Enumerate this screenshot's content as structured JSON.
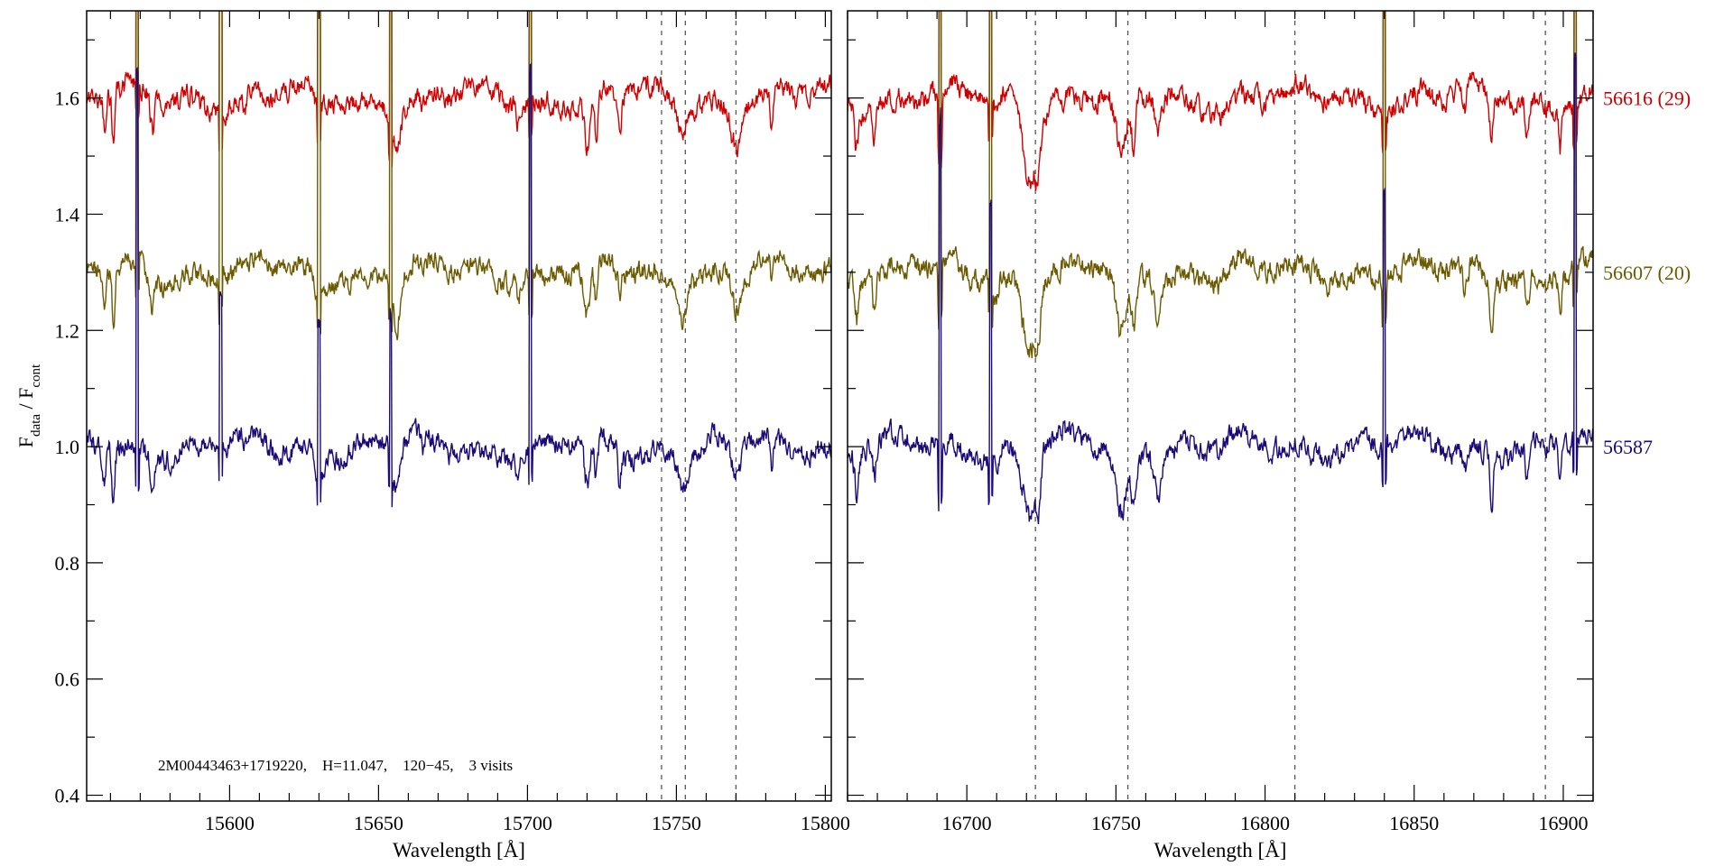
{
  "chart_data": {
    "type": "line",
    "ylabel_main": "F",
    "ylabel_sub1": "data",
    "ylabel_sep": " / F",
    "ylabel_sub2": "cont",
    "ylim": [
      0.39,
      1.75
    ],
    "yticks": [
      0.4,
      0.6,
      0.8,
      1.0,
      1.2,
      1.4,
      1.6
    ],
    "ytick_labels": [
      "0.4",
      "0.6",
      "0.8",
      "1.0",
      "1.2",
      "1.4",
      "1.6"
    ],
    "annotation": "2M00443463+1719220,    H=11.047,    120−45,    3 visits",
    "series": [
      {
        "name": "56616 (29)",
        "color": "#d10000",
        "offset": 0.6
      },
      {
        "name": "56607 (20)",
        "color": "#6b5a00",
        "offset": 0.3
      },
      {
        "name": "56587",
        "color": "#1c0a78",
        "offset": 0.0
      }
    ],
    "panels": [
      {
        "xlabel": "Wavelength [Å]",
        "xlim": [
          15552,
          15802
        ],
        "xticks": [
          15600,
          15650,
          15700,
          15750,
          15800
        ],
        "xtick_labels": [
          "15600",
          "15650",
          "15700",
          "15750",
          "15800"
        ],
        "dashed_lines": [
          15745,
          15753,
          15770
        ],
        "spikes": [
          15569,
          15597,
          15630,
          15654,
          15701
        ],
        "absorption": [
          [
            15558,
            0.05,
            0.6
          ],
          [
            15561,
            0.1,
            0.5
          ],
          [
            15574,
            0.07,
            0.6
          ],
          [
            15605,
            0.03,
            0.5
          ],
          [
            15630,
            0.04,
            1.5
          ],
          [
            15656,
            0.09,
            1.2
          ],
          [
            15665,
            0.03,
            0.8
          ],
          [
            15697,
            0.04,
            0.6
          ],
          [
            15720,
            0.1,
            1.0
          ],
          [
            15723,
            0.08,
            0.6
          ],
          [
            15731,
            0.07,
            0.5
          ],
          [
            15752,
            0.06,
            1.5
          ],
          [
            15770,
            0.07,
            1.5
          ],
          [
            15782,
            0.07,
            0.5
          ]
        ],
        "seed": 7
      },
      {
        "xlabel": "Wavelength [Å]",
        "xlim": [
          16660,
          16910
        ],
        "xticks": [
          16700,
          16750,
          16800,
          16850,
          16900
        ],
        "xtick_labels": [
          "16700",
          "16750",
          "16800",
          "16850",
          "16900"
        ],
        "dashed_lines": [
          16723,
          16754,
          16810,
          16894
        ],
        "spikes": [
          16691,
          16708,
          16840,
          16904
        ],
        "absorption": [
          [
            16663,
            0.08,
            0.6
          ],
          [
            16669,
            0.06,
            0.5
          ],
          [
            16691,
            0.12,
            0.4
          ],
          [
            16710,
            0.05,
            0.6
          ],
          [
            16721,
            0.14,
            2.2
          ],
          [
            16724,
            0.08,
            0.8
          ],
          [
            16752,
            0.14,
            2.0
          ],
          [
            16756,
            0.1,
            0.8
          ],
          [
            16764,
            0.07,
            0.8
          ],
          [
            16785,
            0.02,
            1.0
          ],
          [
            16867,
            0.05,
            0.6
          ],
          [
            16876,
            0.1,
            0.5
          ],
          [
            16888,
            0.08,
            0.6
          ],
          [
            16899,
            0.07,
            0.5
          ]
        ],
        "seed": 13
      }
    ]
  }
}
